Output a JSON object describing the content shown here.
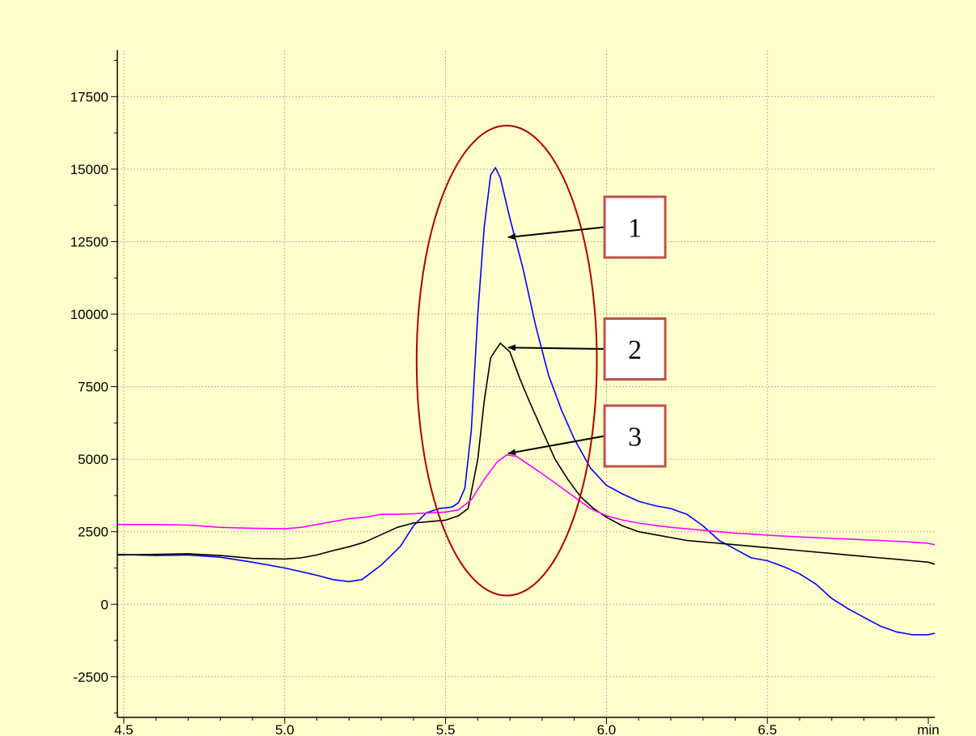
{
  "chart_data": {
    "type": "line",
    "title": "",
    "xlabel": "",
    "ylabel": "",
    "x_unit_label": "min",
    "xlim": [
      4.48,
      7.02
    ],
    "ylim": [
      -3900,
      19100
    ],
    "x_ticks": [
      4.5,
      5.0,
      5.5,
      6.0,
      6.5
    ],
    "x_tick_labels": [
      "4.5",
      "5.0",
      "5.5",
      "6.0",
      "6.5"
    ],
    "y_ticks": [
      -2500,
      0,
      2500,
      5000,
      7500,
      10000,
      12500,
      15000,
      17500
    ],
    "y_tick_labels": [
      "-2500",
      "0",
      "2500",
      "5000",
      "7500",
      "10000",
      "12500",
      "15000",
      "17500"
    ],
    "grid": true,
    "legend": "none",
    "colors": {
      "background": "#ffffcc",
      "grid": "#b0b0b0",
      "ellipse": "#b00000",
      "callout_border": "#c0504d"
    },
    "series": [
      {
        "color": "#0000ff",
        "points": [
          [
            4.48,
            1720
          ],
          [
            4.6,
            1680
          ],
          [
            4.7,
            1700
          ],
          [
            4.8,
            1620
          ],
          [
            4.9,
            1450
          ],
          [
            5.0,
            1250
          ],
          [
            5.1,
            1000
          ],
          [
            5.15,
            850
          ],
          [
            5.2,
            780
          ],
          [
            5.24,
            850
          ],
          [
            5.3,
            1350
          ],
          [
            5.36,
            2000
          ],
          [
            5.4,
            2700
          ],
          [
            5.44,
            3150
          ],
          [
            5.48,
            3300
          ],
          [
            5.52,
            3350
          ],
          [
            5.54,
            3500
          ],
          [
            5.56,
            4000
          ],
          [
            5.58,
            6000
          ],
          [
            5.6,
            10000
          ],
          [
            5.62,
            13000
          ],
          [
            5.64,
            14800
          ],
          [
            5.655,
            15050
          ],
          [
            5.67,
            14700
          ],
          [
            5.7,
            13300
          ],
          [
            5.74,
            11600
          ],
          [
            5.78,
            9600
          ],
          [
            5.82,
            7900
          ],
          [
            5.86,
            6700
          ],
          [
            5.9,
            5700
          ],
          [
            5.95,
            4700
          ],
          [
            6.0,
            4100
          ],
          [
            6.05,
            3800
          ],
          [
            6.1,
            3550
          ],
          [
            6.15,
            3400
          ],
          [
            6.2,
            3300
          ],
          [
            6.25,
            3100
          ],
          [
            6.3,
            2700
          ],
          [
            6.35,
            2200
          ],
          [
            6.4,
            1900
          ],
          [
            6.45,
            1600
          ],
          [
            6.5,
            1500
          ],
          [
            6.55,
            1300
          ],
          [
            6.6,
            1050
          ],
          [
            6.65,
            700
          ],
          [
            6.7,
            200
          ],
          [
            6.75,
            -150
          ],
          [
            6.8,
            -450
          ],
          [
            6.85,
            -750
          ],
          [
            6.9,
            -950
          ],
          [
            6.95,
            -1050
          ],
          [
            7.0,
            -1050
          ],
          [
            7.02,
            -1000
          ]
        ]
      },
      {
        "color": "#000000",
        "points": [
          [
            4.48,
            1700
          ],
          [
            4.6,
            1720
          ],
          [
            4.7,
            1740
          ],
          [
            4.8,
            1680
          ],
          [
            4.9,
            1580
          ],
          [
            5.0,
            1560
          ],
          [
            5.05,
            1600
          ],
          [
            5.1,
            1700
          ],
          [
            5.15,
            1850
          ],
          [
            5.2,
            1980
          ],
          [
            5.25,
            2150
          ],
          [
            5.3,
            2400
          ],
          [
            5.35,
            2650
          ],
          [
            5.4,
            2800
          ],
          [
            5.45,
            2850
          ],
          [
            5.5,
            2900
          ],
          [
            5.54,
            3050
          ],
          [
            5.57,
            3300
          ],
          [
            5.6,
            5000
          ],
          [
            5.62,
            7000
          ],
          [
            5.64,
            8500
          ],
          [
            5.67,
            9000
          ],
          [
            5.7,
            8700
          ],
          [
            5.73,
            7800
          ],
          [
            5.76,
            7000
          ],
          [
            5.8,
            6000
          ],
          [
            5.84,
            5000
          ],
          [
            5.88,
            4300
          ],
          [
            5.92,
            3700
          ],
          [
            5.96,
            3300
          ],
          [
            6.0,
            3000
          ],
          [
            6.05,
            2700
          ],
          [
            6.1,
            2500
          ],
          [
            6.15,
            2400
          ],
          [
            6.2,
            2300
          ],
          [
            6.25,
            2200
          ],
          [
            6.3,
            2150
          ],
          [
            6.35,
            2100
          ],
          [
            6.4,
            2050
          ],
          [
            6.45,
            2000
          ],
          [
            6.5,
            1950
          ],
          [
            6.55,
            1900
          ],
          [
            6.6,
            1850
          ],
          [
            6.65,
            1800
          ],
          [
            6.7,
            1750
          ],
          [
            6.75,
            1700
          ],
          [
            6.8,
            1650
          ],
          [
            6.85,
            1600
          ],
          [
            6.9,
            1550
          ],
          [
            6.95,
            1500
          ],
          [
            7.0,
            1450
          ],
          [
            7.02,
            1380
          ]
        ]
      },
      {
        "color": "#ff00ff",
        "points": [
          [
            4.48,
            2750
          ],
          [
            4.6,
            2750
          ],
          [
            4.7,
            2730
          ],
          [
            4.8,
            2650
          ],
          [
            4.9,
            2620
          ],
          [
            5.0,
            2600
          ],
          [
            5.05,
            2650
          ],
          [
            5.1,
            2750
          ],
          [
            5.15,
            2850
          ],
          [
            5.2,
            2950
          ],
          [
            5.25,
            3000
          ],
          [
            5.3,
            3100
          ],
          [
            5.35,
            3100
          ],
          [
            5.4,
            3120
          ],
          [
            5.45,
            3150
          ],
          [
            5.5,
            3180
          ],
          [
            5.54,
            3250
          ],
          [
            5.58,
            3600
          ],
          [
            5.62,
            4300
          ],
          [
            5.66,
            4900
          ],
          [
            5.69,
            5150
          ],
          [
            5.72,
            5100
          ],
          [
            5.76,
            4800
          ],
          [
            5.8,
            4500
          ],
          [
            5.85,
            4100
          ],
          [
            5.9,
            3700
          ],
          [
            5.95,
            3300
          ],
          [
            6.0,
            3050
          ],
          [
            6.05,
            2900
          ],
          [
            6.1,
            2800
          ],
          [
            6.15,
            2720
          ],
          [
            6.2,
            2650
          ],
          [
            6.25,
            2600
          ],
          [
            6.3,
            2550
          ],
          [
            6.35,
            2500
          ],
          [
            6.4,
            2450
          ],
          [
            6.45,
            2420
          ],
          [
            6.5,
            2380
          ],
          [
            6.55,
            2350
          ],
          [
            6.6,
            2320
          ],
          [
            6.65,
            2300
          ],
          [
            6.7,
            2270
          ],
          [
            6.75,
            2250
          ],
          [
            6.8,
            2220
          ],
          [
            6.85,
            2200
          ],
          [
            6.9,
            2170
          ],
          [
            6.95,
            2140
          ],
          [
            7.0,
            2100
          ],
          [
            7.02,
            2050
          ]
        ]
      }
    ],
    "annotations": {
      "ellipse": {
        "cx": 5.69,
        "cy": 8400,
        "rx": 0.28,
        "ry": 8100
      },
      "callouts": [
        {
          "label": "1",
          "box_x": 5.95,
          "box_y": 13000,
          "arrow_x": 5.72,
          "arrow_y": 12650
        },
        {
          "label": "2",
          "box_x": 5.95,
          "box_y": 8800,
          "arrow_x": 5.72,
          "arrow_y": 8850
        },
        {
          "label": "3",
          "box_x": 5.95,
          "box_y": 5800,
          "arrow_x": 5.72,
          "arrow_y": 5200
        }
      ]
    }
  }
}
